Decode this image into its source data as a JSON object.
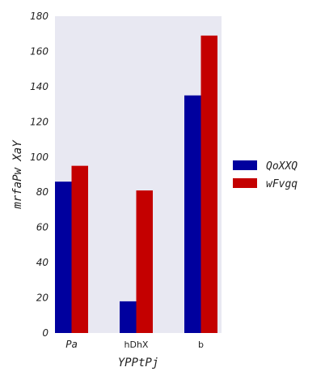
{
  "chart_data": {
    "type": "bar",
    "title": "",
    "xlabel": "YPPtPj",
    "ylabel": "mrfaPw XaY",
    "categories": [
      "Pa",
      "hDhX",
      "b"
    ],
    "category_italic": [
      true,
      false,
      false
    ],
    "ylim": [
      0,
      180
    ],
    "yticks": [
      0,
      20,
      40,
      60,
      80,
      100,
      120,
      140,
      160,
      180
    ],
    "grid": false,
    "legend_position": "right",
    "series": [
      {
        "name": "QoXXQ",
        "values": [
          86,
          18,
          135
        ],
        "color": "#00009e"
      },
      {
        "name": "wFvgq",
        "values": [
          95,
          81,
          169
        ],
        "color": "#c40000"
      }
    ],
    "plot_background": "#e8e8f2"
  }
}
